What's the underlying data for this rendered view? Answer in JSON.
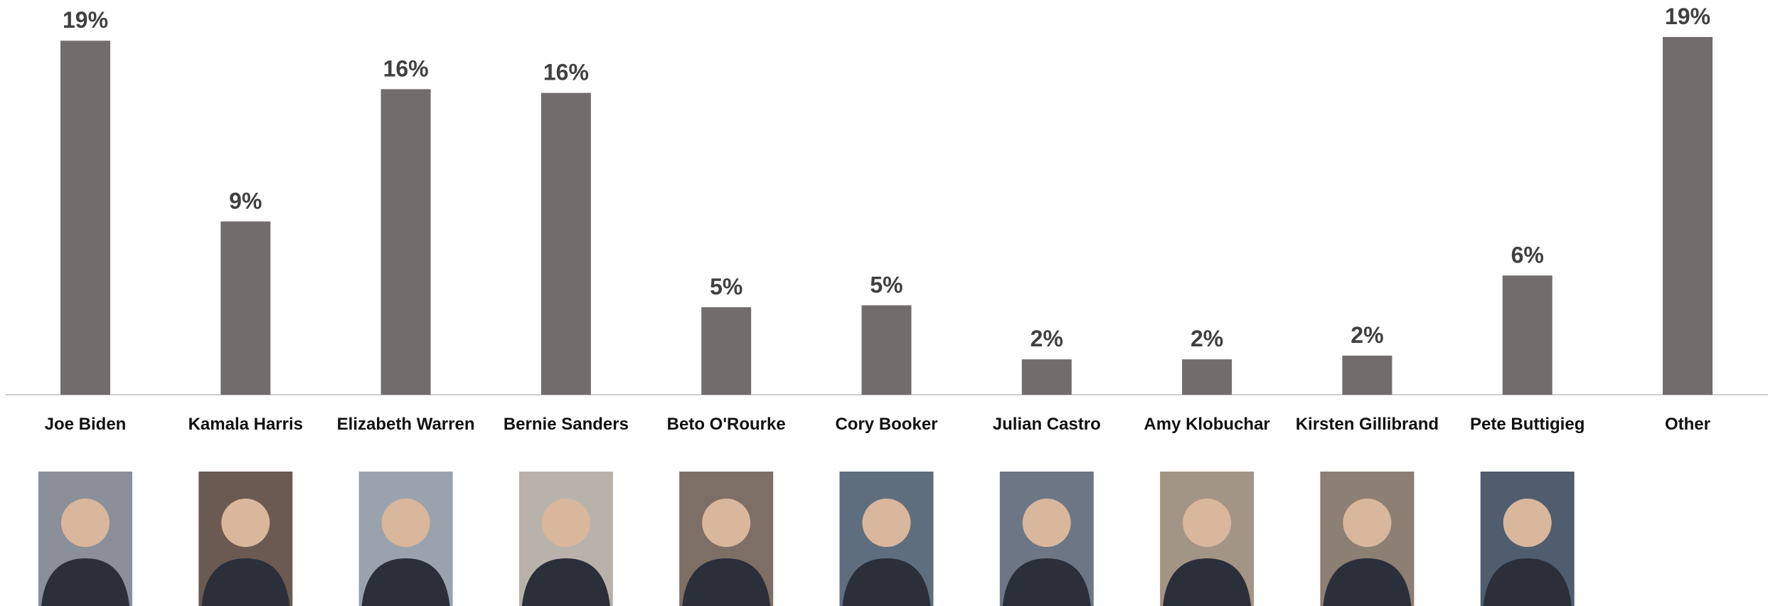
{
  "chart_data": {
    "type": "bar",
    "categories": [
      "Joe Biden",
      "Kamala Harris",
      "Elizabeth Warren",
      "Bernie Sanders",
      "Beto O'Rourke",
      "Cory Booker",
      "Julian Castro",
      "Amy Klobuchar",
      "Kirsten Gillibrand",
      "Pete Buttigieg",
      "Other"
    ],
    "values": [
      19,
      9.3,
      16.4,
      16.2,
      4.7,
      4.8,
      1.9,
      1.9,
      2.1,
      6.4,
      19.2
    ],
    "value_labels": [
      "19%",
      "9%",
      "16%",
      "16%",
      "5%",
      "5%",
      "2%",
      "2%",
      "2%",
      "6%",
      "19%"
    ],
    "color": "#716d6c"
  }
}
